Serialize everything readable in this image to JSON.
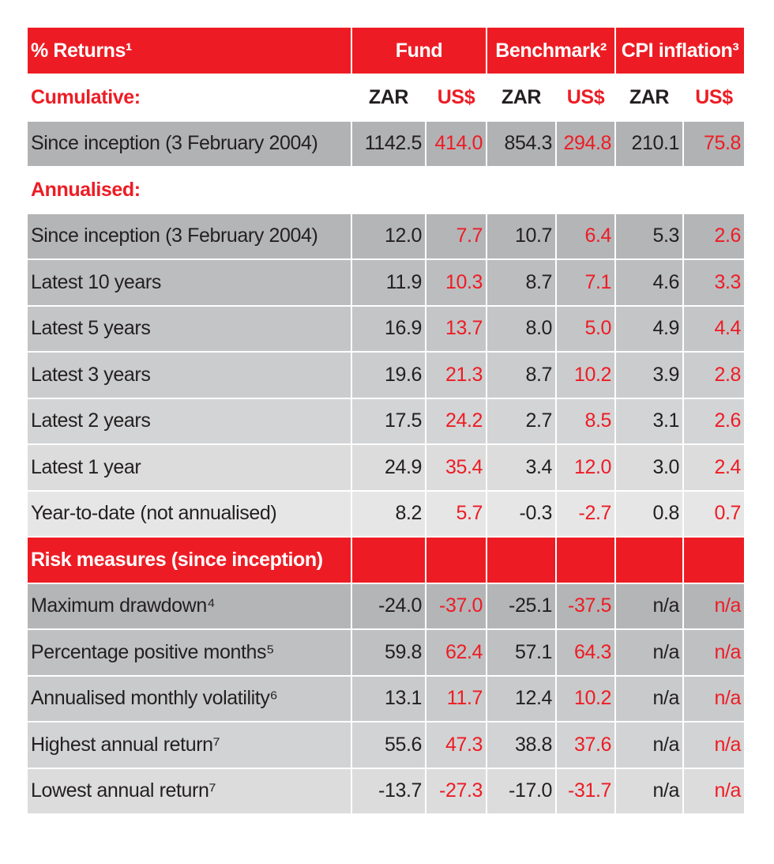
{
  "header": {
    "title": "% Returns¹",
    "groups": [
      "Fund",
      "Benchmark²",
      "CPI inflation³"
    ],
    "currencies": [
      "ZAR",
      "US$",
      "ZAR",
      "US$",
      "ZAR",
      "US$"
    ]
  },
  "sections": [
    {
      "title": "Cumulative:",
      "rows": [
        {
          "label": "Since inception (3 February 2004)",
          "values": [
            "1142.5",
            "414.0",
            "854.3",
            "294.8",
            "210.1",
            "75.8"
          ]
        }
      ]
    },
    {
      "title": "Annualised:",
      "rows": [
        {
          "label": "Since inception (3 February 2004)",
          "values": [
            "12.0",
            "7.7",
            "10.7",
            "6.4",
            "5.3",
            "2.6"
          ]
        },
        {
          "label": "Latest 10 years",
          "values": [
            "11.9",
            "10.3",
            "8.7",
            "7.1",
            "4.6",
            "3.3"
          ]
        },
        {
          "label": "Latest 5 years",
          "values": [
            "16.9",
            "13.7",
            "8.0",
            "5.0",
            "4.9",
            "4.4"
          ]
        },
        {
          "label": "Latest 3 years",
          "values": [
            "19.6",
            "21.3",
            "8.7",
            "10.2",
            "3.9",
            "2.8"
          ]
        },
        {
          "label": "Latest 2 years",
          "values": [
            "17.5",
            "24.2",
            "2.7",
            "8.5",
            "3.1",
            "2.6"
          ]
        },
        {
          "label": "Latest 1 year",
          "values": [
            "24.9",
            "35.4",
            "3.4",
            "12.0",
            "3.0",
            "2.4"
          ]
        },
        {
          "label": "Year-to-date (not annualised)",
          "values": [
            "8.2",
            "5.7",
            "-0.3",
            "-2.7",
            "0.8",
            "0.7"
          ]
        }
      ]
    },
    {
      "title": "Risk measures (since inception)",
      "rows": [
        {
          "label": "Maximum drawdown⁴",
          "values": [
            "-24.0",
            "-37.0",
            "-25.1",
            "-37.5",
            "n/a",
            "n/a"
          ]
        },
        {
          "label": "Percentage positive months⁵",
          "values": [
            "59.8",
            "62.4",
            "57.1",
            "64.3",
            "n/a",
            "n/a"
          ]
        },
        {
          "label": "Annualised monthly volatility⁶",
          "values": [
            "13.1",
            "11.7",
            "12.4",
            "10.2",
            "n/a",
            "n/a"
          ]
        },
        {
          "label": "Highest annual return⁷",
          "values": [
            "55.6",
            "47.3",
            "38.8",
            "37.6",
            "n/a",
            "n/a"
          ]
        },
        {
          "label": "Lowest annual return⁷",
          "values": [
            "-13.7",
            "-27.3",
            "-17.0",
            "-31.7",
            "n/a",
            "n/a"
          ]
        }
      ]
    }
  ]
}
